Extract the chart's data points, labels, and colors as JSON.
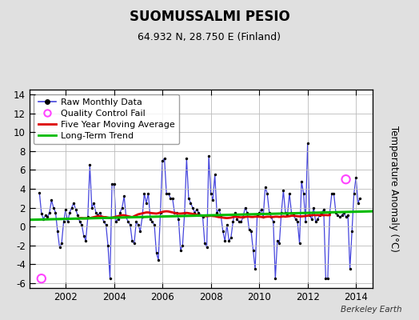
{
  "title": "SUOMUSSALMI PESIO",
  "subtitle": "64.932 N, 28.750 E (Finland)",
  "ylabel": "Temperature Anomaly (°C)",
  "watermark": "Berkeley Earth",
  "ylim": [
    -6.5,
    14.5
  ],
  "xlim": [
    2000.5,
    2014.7
  ],
  "xticks": [
    2002,
    2004,
    2006,
    2008,
    2010,
    2012,
    2014
  ],
  "yticks": [
    -6,
    -4,
    -2,
    0,
    2,
    4,
    6,
    8,
    10,
    12,
    14
  ],
  "bg_color": "#e0e0e0",
  "plot_bg_color": "#ffffff",
  "grid_color": "#bbbbbb",
  "raw_line_color": "#4444dd",
  "raw_dot_color": "#000000",
  "ma_color": "#dd0000",
  "trend_color": "#00bb00",
  "qc_fail_color": "#ff44ff",
  "legend_entries": [
    "Raw Monthly Data",
    "Quality Control Fail",
    "Five Year Moving Average",
    "Long-Term Trend"
  ],
  "raw_data": [
    [
      2000.917,
      3.6
    ],
    [
      2001.0,
      1.4
    ],
    [
      2001.083,
      0.8
    ],
    [
      2001.167,
      1.2
    ],
    [
      2001.25,
      1.0
    ],
    [
      2001.333,
      1.5
    ],
    [
      2001.417,
      2.8
    ],
    [
      2001.5,
      2.0
    ],
    [
      2001.583,
      1.5
    ],
    [
      2001.667,
      -0.5
    ],
    [
      2001.75,
      -2.2
    ],
    [
      2001.833,
      -1.8
    ],
    [
      2001.917,
      0.5
    ],
    [
      2002.0,
      1.8
    ],
    [
      2002.083,
      0.5
    ],
    [
      2002.167,
      1.5
    ],
    [
      2002.25,
      2.0
    ],
    [
      2002.333,
      2.5
    ],
    [
      2002.417,
      1.8
    ],
    [
      2002.5,
      1.2
    ],
    [
      2002.583,
      0.5
    ],
    [
      2002.667,
      0.2
    ],
    [
      2002.75,
      -1.0
    ],
    [
      2002.833,
      -1.5
    ],
    [
      2002.917,
      1.0
    ],
    [
      2003.0,
      6.5
    ],
    [
      2003.083,
      2.0
    ],
    [
      2003.167,
      2.5
    ],
    [
      2003.25,
      1.5
    ],
    [
      2003.333,
      1.2
    ],
    [
      2003.417,
      1.5
    ],
    [
      2003.5,
      1.0
    ],
    [
      2003.583,
      0.5
    ],
    [
      2003.667,
      0.2
    ],
    [
      2003.75,
      -2.0
    ],
    [
      2003.833,
      -5.5
    ],
    [
      2003.917,
      4.5
    ],
    [
      2004.0,
      4.5
    ],
    [
      2004.083,
      0.5
    ],
    [
      2004.167,
      0.8
    ],
    [
      2004.25,
      1.5
    ],
    [
      2004.333,
      2.0
    ],
    [
      2004.417,
      3.2
    ],
    [
      2004.5,
      1.0
    ],
    [
      2004.583,
      0.5
    ],
    [
      2004.667,
      0.2
    ],
    [
      2004.75,
      -1.5
    ],
    [
      2004.833,
      -1.8
    ],
    [
      2004.917,
      0.5
    ],
    [
      2005.0,
      0.2
    ],
    [
      2005.083,
      -0.5
    ],
    [
      2005.167,
      1.0
    ],
    [
      2005.25,
      3.5
    ],
    [
      2005.333,
      2.5
    ],
    [
      2005.417,
      3.5
    ],
    [
      2005.5,
      0.8
    ],
    [
      2005.583,
      0.5
    ],
    [
      2005.667,
      0.2
    ],
    [
      2005.75,
      -2.8
    ],
    [
      2005.833,
      -3.5
    ],
    [
      2005.917,
      1.5
    ],
    [
      2006.0,
      7.0
    ],
    [
      2006.083,
      7.2
    ],
    [
      2006.167,
      3.5
    ],
    [
      2006.25,
      3.5
    ],
    [
      2006.333,
      3.0
    ],
    [
      2006.417,
      3.0
    ],
    [
      2006.5,
      1.5
    ],
    [
      2006.583,
      1.5
    ],
    [
      2006.667,
      0.8
    ],
    [
      2006.75,
      -2.5
    ],
    [
      2006.833,
      -2.0
    ],
    [
      2006.917,
      1.5
    ],
    [
      2007.0,
      7.2
    ],
    [
      2007.083,
      3.0
    ],
    [
      2007.167,
      2.5
    ],
    [
      2007.25,
      2.0
    ],
    [
      2007.333,
      1.5
    ],
    [
      2007.417,
      1.8
    ],
    [
      2007.5,
      1.5
    ],
    [
      2007.583,
      1.2
    ],
    [
      2007.667,
      1.0
    ],
    [
      2007.75,
      -1.8
    ],
    [
      2007.833,
      -2.2
    ],
    [
      2007.917,
      7.5
    ],
    [
      2008.0,
      3.5
    ],
    [
      2008.083,
      2.8
    ],
    [
      2008.167,
      5.5
    ],
    [
      2008.25,
      1.5
    ],
    [
      2008.333,
      1.8
    ],
    [
      2008.417,
      1.2
    ],
    [
      2008.5,
      -0.5
    ],
    [
      2008.583,
      -1.5
    ],
    [
      2008.667,
      0.2
    ],
    [
      2008.75,
      -1.5
    ],
    [
      2008.833,
      -1.2
    ],
    [
      2008.917,
      0.5
    ],
    [
      2009.0,
      1.5
    ],
    [
      2009.083,
      0.8
    ],
    [
      2009.167,
      0.5
    ],
    [
      2009.25,
      0.5
    ],
    [
      2009.333,
      1.0
    ],
    [
      2009.417,
      2.0
    ],
    [
      2009.5,
      1.5
    ],
    [
      2009.583,
      -0.3
    ],
    [
      2009.667,
      -0.5
    ],
    [
      2009.75,
      -2.5
    ],
    [
      2009.833,
      -4.5
    ],
    [
      2009.917,
      1.2
    ],
    [
      2010.0,
      1.5
    ],
    [
      2010.083,
      1.8
    ],
    [
      2010.167,
      1.0
    ],
    [
      2010.25,
      4.2
    ],
    [
      2010.333,
      3.5
    ],
    [
      2010.417,
      1.5
    ],
    [
      2010.5,
      1.0
    ],
    [
      2010.583,
      0.5
    ],
    [
      2010.667,
      -5.5
    ],
    [
      2010.75,
      -1.5
    ],
    [
      2010.833,
      -1.8
    ],
    [
      2010.917,
      1.5
    ],
    [
      2011.0,
      3.8
    ],
    [
      2011.083,
      1.5
    ],
    [
      2011.167,
      1.2
    ],
    [
      2011.25,
      3.5
    ],
    [
      2011.333,
      1.5
    ],
    [
      2011.417,
      1.2
    ],
    [
      2011.5,
      0.8
    ],
    [
      2011.583,
      0.5
    ],
    [
      2011.667,
      -1.8
    ],
    [
      2011.75,
      4.8
    ],
    [
      2011.833,
      3.5
    ],
    [
      2011.917,
      0.5
    ],
    [
      2012.0,
      8.8
    ],
    [
      2012.083,
      1.2
    ],
    [
      2012.167,
      0.8
    ],
    [
      2012.25,
      2.0
    ],
    [
      2012.333,
      0.5
    ],
    [
      2012.417,
      0.8
    ],
    [
      2012.5,
      1.2
    ],
    [
      2012.583,
      1.5
    ],
    [
      2012.667,
      1.8
    ],
    [
      2012.75,
      -5.5
    ],
    [
      2012.833,
      -5.5
    ],
    [
      2012.917,
      1.5
    ],
    [
      2013.0,
      3.5
    ],
    [
      2013.083,
      3.5
    ],
    [
      2013.167,
      1.5
    ],
    [
      2013.25,
      1.2
    ],
    [
      2013.333,
      1.0
    ],
    [
      2013.417,
      1.2
    ],
    [
      2013.5,
      1.5
    ],
    [
      2013.583,
      1.0
    ],
    [
      2013.667,
      1.2
    ],
    [
      2013.75,
      -4.5
    ],
    [
      2013.833,
      -0.5
    ],
    [
      2013.917,
      3.5
    ],
    [
      2014.0,
      5.2
    ],
    [
      2014.083,
      2.5
    ],
    [
      2014.167,
      3.0
    ]
  ],
  "qc_fail_points": [
    [
      2001.0,
      -5.5
    ],
    [
      2013.583,
      5.0
    ]
  ],
  "moving_avg": [
    [
      2002.5,
      0.85
    ],
    [
      2002.583,
      0.9
    ],
    [
      2002.667,
      0.9
    ],
    [
      2002.75,
      0.88
    ],
    [
      2002.833,
      0.88
    ],
    [
      2002.917,
      0.88
    ],
    [
      2003.0,
      0.9
    ],
    [
      2003.083,
      0.95
    ],
    [
      2003.167,
      1.0
    ],
    [
      2003.25,
      1.05
    ],
    [
      2003.333,
      1.1
    ],
    [
      2003.417,
      1.1
    ],
    [
      2003.5,
      1.05
    ],
    [
      2003.583,
      1.0
    ],
    [
      2003.667,
      1.0
    ],
    [
      2003.75,
      0.95
    ],
    [
      2003.833,
      0.9
    ],
    [
      2003.917,
      0.95
    ],
    [
      2004.0,
      1.0
    ],
    [
      2004.083,
      1.05
    ],
    [
      2004.167,
      1.1
    ],
    [
      2004.25,
      1.15
    ],
    [
      2004.333,
      1.2
    ],
    [
      2004.417,
      1.2
    ],
    [
      2004.5,
      1.15
    ],
    [
      2004.583,
      1.1
    ],
    [
      2004.667,
      1.05
    ],
    [
      2004.75,
      1.0
    ],
    [
      2004.833,
      1.1
    ],
    [
      2004.917,
      1.2
    ],
    [
      2005.0,
      1.3
    ],
    [
      2005.083,
      1.35
    ],
    [
      2005.167,
      1.4
    ],
    [
      2005.25,
      1.45
    ],
    [
      2005.333,
      1.5
    ],
    [
      2005.417,
      1.5
    ],
    [
      2005.5,
      1.45
    ],
    [
      2005.583,
      1.42
    ],
    [
      2005.667,
      1.4
    ],
    [
      2005.75,
      1.38
    ],
    [
      2005.833,
      1.42
    ],
    [
      2005.917,
      1.5
    ],
    [
      2006.0,
      1.55
    ],
    [
      2006.083,
      1.6
    ],
    [
      2006.167,
      1.62
    ],
    [
      2006.25,
      1.6
    ],
    [
      2006.333,
      1.55
    ],
    [
      2006.417,
      1.5
    ],
    [
      2006.5,
      1.45
    ],
    [
      2006.583,
      1.4
    ],
    [
      2006.667,
      1.38
    ],
    [
      2006.75,
      1.38
    ],
    [
      2006.833,
      1.4
    ],
    [
      2006.917,
      1.42
    ],
    [
      2007.0,
      1.45
    ],
    [
      2007.083,
      1.42
    ],
    [
      2007.167,
      1.38
    ],
    [
      2007.25,
      1.35
    ],
    [
      2007.333,
      1.3
    ],
    [
      2007.417,
      1.25
    ],
    [
      2007.5,
      1.2
    ],
    [
      2007.583,
      1.18
    ],
    [
      2007.667,
      1.15
    ],
    [
      2007.75,
      1.12
    ],
    [
      2007.833,
      1.1
    ],
    [
      2007.917,
      1.12
    ],
    [
      2008.0,
      1.15
    ],
    [
      2008.083,
      1.12
    ],
    [
      2008.167,
      1.1
    ],
    [
      2008.25,
      1.05
    ],
    [
      2008.333,
      1.0
    ],
    [
      2008.417,
      0.98
    ],
    [
      2008.5,
      0.95
    ],
    [
      2008.583,
      0.92
    ],
    [
      2008.667,
      0.9
    ],
    [
      2008.75,
      0.92
    ],
    [
      2008.833,
      0.95
    ],
    [
      2008.917,
      1.0
    ],
    [
      2009.0,
      1.05
    ],
    [
      2009.083,
      1.02
    ],
    [
      2009.167,
      1.0
    ],
    [
      2009.25,
      0.98
    ],
    [
      2009.333,
      1.0
    ],
    [
      2009.417,
      1.02
    ],
    [
      2009.5,
      1.05
    ],
    [
      2009.583,
      1.05
    ],
    [
      2009.667,
      1.02
    ],
    [
      2009.75,
      1.02
    ],
    [
      2009.833,
      1.05
    ],
    [
      2009.917,
      1.05
    ],
    [
      2010.0,
      1.05
    ],
    [
      2010.083,
      1.02
    ],
    [
      2010.167,
      1.0
    ],
    [
      2010.25,
      1.02
    ],
    [
      2010.333,
      1.05
    ],
    [
      2010.417,
      1.05
    ],
    [
      2010.5,
      1.02
    ],
    [
      2010.583,
      1.02
    ],
    [
      2010.667,
      1.05
    ],
    [
      2010.75,
      1.05
    ],
    [
      2010.833,
      1.02
    ],
    [
      2010.917,
      1.05
    ],
    [
      2011.0,
      1.08
    ],
    [
      2011.083,
      1.05
    ],
    [
      2011.167,
      1.08
    ],
    [
      2011.25,
      1.1
    ],
    [
      2011.333,
      1.15
    ],
    [
      2011.417,
      1.15
    ],
    [
      2011.5,
      1.12
    ],
    [
      2011.583,
      1.1
    ],
    [
      2011.667,
      1.08
    ],
    [
      2011.75,
      1.08
    ],
    [
      2011.833,
      1.1
    ],
    [
      2011.917,
      1.12
    ],
    [
      2012.0,
      1.15
    ],
    [
      2012.083,
      1.2
    ],
    [
      2012.167,
      1.2
    ],
    [
      2012.25,
      1.22
    ],
    [
      2012.333,
      1.2
    ],
    [
      2012.417,
      1.22
    ],
    [
      2012.5,
      1.2
    ],
    [
      2012.583,
      1.22
    ],
    [
      2012.667,
      1.2
    ],
    [
      2012.75,
      1.22
    ],
    [
      2012.833,
      1.2
    ],
    [
      2012.917,
      1.22
    ]
  ],
  "trend_x": [
    2000.5,
    2014.7
  ],
  "trend_y": [
    0.72,
    1.62
  ]
}
